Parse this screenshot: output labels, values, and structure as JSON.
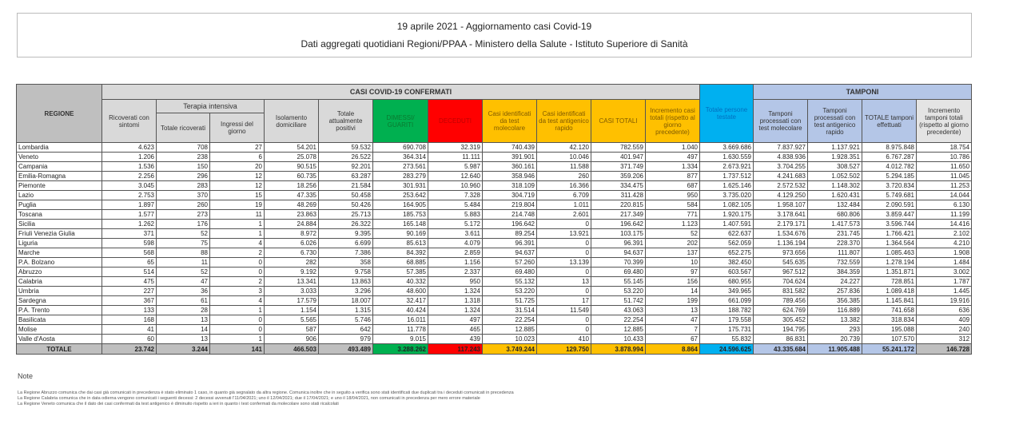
{
  "title": "19 aprile 2021 - Aggiornamento casi Covid-19",
  "subtitle": "Dati aggregati quotidiani Regioni/PPAA - Ministero della Salute - Istituto Superiore di Sanità",
  "headers": {
    "regione": "REGIONE",
    "casi_confermati": "CASI COVID-19 CONFERMATI",
    "tamponi": "TAMPONI",
    "terapia_intensiva": "Terapia intensiva",
    "columns": [
      "Ricoverati con sintomi",
      "Totale ricoverati",
      "Ingressi del giorno",
      "Isolamento domiciliare",
      "Totale attualmente positivi",
      "DIMESSI/ GUARITI",
      "DECEDUTI",
      "Casi identificati da test molecolare",
      "Casi identificati da test antigenico rapido",
      "CASI TOTALI",
      "Incremento casi totali (rispetto al giorno precedente)",
      "Totale persone testate",
      "Tamponi processati con test molecolare",
      "Tamponi processati con test antigenico rapido",
      "TOTALE tamponi effettuati",
      "Incremento tamponi totali (rispetto al giorno precedente)"
    ]
  },
  "colors": {
    "green": "#00b050",
    "red": "#ff0000",
    "orange": "#ffc000",
    "blue": "#00b0f0",
    "light_blue": "#b4c6e7"
  },
  "rows": [
    [
      "Lombardia",
      "4.623",
      "708",
      "27",
      "54.201",
      "59.532",
      "690.708",
      "32.319",
      "740.439",
      "42.120",
      "782.559",
      "1.040",
      "3.669.686",
      "7.837.927",
      "1.137.921",
      "8.975.848",
      "18.754"
    ],
    [
      "Veneto",
      "1.206",
      "238",
      "6",
      "25.078",
      "26.522",
      "364.314",
      "11.111",
      "391.901",
      "10.046",
      "401.947",
      "497",
      "1.630.559",
      "4.838.936",
      "1.928.351",
      "6.767.287",
      "10.786"
    ],
    [
      "Campania",
      "1.536",
      "150",
      "20",
      "90.515",
      "92.201",
      "273.561",
      "5.987",
      "360.161",
      "11.588",
      "371.749",
      "1.334",
      "2.673.921",
      "3.704.255",
      "308.527",
      "4.012.782",
      "11.650"
    ],
    [
      "Emilia-Romagna",
      "2.256",
      "296",
      "12",
      "60.735",
      "63.287",
      "283.279",
      "12.640",
      "358.946",
      "260",
      "359.206",
      "877",
      "1.737.512",
      "4.241.683",
      "1.052.502",
      "5.294.185",
      "11.045"
    ],
    [
      "Piemonte",
      "3.045",
      "283",
      "12",
      "18.256",
      "21.584",
      "301.931",
      "10.960",
      "318.109",
      "16.366",
      "334.475",
      "687",
      "1.625.146",
      "2.572.532",
      "1.148.302",
      "3.720.834",
      "11.253"
    ],
    [
      "Lazio",
      "2.753",
      "370",
      "15",
      "47.335",
      "50.458",
      "253.642",
      "7.328",
      "304.719",
      "6.709",
      "311.428",
      "950",
      "3.735.020",
      "4.129.250",
      "1.620.431",
      "5.749.681",
      "14.044"
    ],
    [
      "Puglia",
      "1.897",
      "260",
      "19",
      "48.269",
      "50.426",
      "164.905",
      "5.484",
      "219.804",
      "1.011",
      "220.815",
      "584",
      "1.082.105",
      "1.958.107",
      "132.484",
      "2.090.591",
      "6.130"
    ],
    [
      "Toscana",
      "1.577",
      "273",
      "11",
      "23.863",
      "25.713",
      "185.753",
      "5.883",
      "214.748",
      "2.601",
      "217.349",
      "771",
      "1.920.175",
      "3.178.641",
      "680.806",
      "3.859.447",
      "11.199"
    ],
    [
      "Sicilia",
      "1.262",
      "176",
      "1",
      "24.884",
      "26.322",
      "165.148",
      "5.172",
      "196.642",
      "0",
      "196.642",
      "1.123",
      "1.407.591",
      "2.179.171",
      "1.417.573",
      "3.596.744",
      "14.416"
    ],
    [
      "Friuli Venezia Giulia",
      "371",
      "52",
      "1",
      "8.972",
      "9.395",
      "90.169",
      "3.611",
      "89.254",
      "13.921",
      "103.175",
      "52",
      "622.637",
      "1.534.676",
      "231.745",
      "1.766.421",
      "2.102"
    ],
    [
      "Liguria",
      "598",
      "75",
      "4",
      "6.026",
      "6.699",
      "85.613",
      "4.079",
      "96.391",
      "0",
      "96.391",
      "202",
      "562.059",
      "1.136.194",
      "228.370",
      "1.364.564",
      "4.210"
    ],
    [
      "Marche",
      "568",
      "88",
      "2",
      "6.730",
      "7.386",
      "84.392",
      "2.859",
      "94.637",
      "0",
      "94.637",
      "137",
      "652.275",
      "973.656",
      "111.807",
      "1.085.463",
      "1.908"
    ],
    [
      "P.A. Bolzano",
      "65",
      "11",
      "0",
      "282",
      "358",
      "68.885",
      "1.156",
      "57.260",
      "13.139",
      "70.399",
      "10",
      "382.450",
      "545.635",
      "732.559",
      "1.278.194",
      "1.484"
    ],
    [
      "Abruzzo",
      "514",
      "52",
      "0",
      "9.192",
      "9.758",
      "57.385",
      "2.337",
      "69.480",
      "0",
      "69.480",
      "97",
      "603.567",
      "967.512",
      "384.359",
      "1.351.871",
      "3.002"
    ],
    [
      "Calabria",
      "475",
      "47",
      "2",
      "13.341",
      "13.863",
      "40.332",
      "950",
      "55.132",
      "13",
      "55.145",
      "156",
      "680.955",
      "704.624",
      "24.227",
      "728.851",
      "1.787"
    ],
    [
      "Umbria",
      "227",
      "36",
      "3",
      "3.033",
      "3.296",
      "48.600",
      "1.324",
      "53.220",
      "0",
      "53.220",
      "14",
      "349.965",
      "831.582",
      "257.836",
      "1.089.418",
      "1.445"
    ],
    [
      "Sardegna",
      "367",
      "61",
      "4",
      "17.579",
      "18.007",
      "32.417",
      "1.318",
      "51.725",
      "17",
      "51.742",
      "199",
      "661.099",
      "789.456",
      "356.385",
      "1.145.841",
      "19.916"
    ],
    [
      "P.A. Trento",
      "133",
      "28",
      "1",
      "1.154",
      "1.315",
      "40.424",
      "1.324",
      "31.514",
      "11.549",
      "43.063",
      "13",
      "188.782",
      "624.769",
      "116.889",
      "741.658",
      "636"
    ],
    [
      "Basilicata",
      "168",
      "13",
      "0",
      "5.565",
      "5.746",
      "16.011",
      "497",
      "22.254",
      "0",
      "22.254",
      "47",
      "179.558",
      "305.452",
      "13.382",
      "318.834",
      "409"
    ],
    [
      "Molise",
      "41",
      "14",
      "0",
      "587",
      "642",
      "11.778",
      "465",
      "12.885",
      "0",
      "12.885",
      "7",
      "175.731",
      "194.795",
      "293",
      "195.088",
      "240"
    ],
    [
      "Valle d'Aosta",
      "60",
      "13",
      "1",
      "906",
      "979",
      "9.015",
      "439",
      "10.023",
      "410",
      "10.433",
      "67",
      "55.832",
      "86.831",
      "20.739",
      "107.570",
      "312"
    ]
  ],
  "totals": [
    "TOTALE",
    "23.742",
    "3.244",
    "141",
    "466.503",
    "493.489",
    "3.288.262",
    "117.243",
    "3.749.244",
    "129.750",
    "3.878.994",
    "8.864",
    "24.596.625",
    "43.335.684",
    "11.905.488",
    "55.241.172",
    "146.728"
  ],
  "notes": {
    "heading": "Note",
    "items": [
      "La Regione Abruzzo comunica che dai casi già comunicati in precedenza è stato eliminato 1 caso, in quanto già segnalato da altra regione. Comunica inoltre che in seguito a verifica sono stati identificati due duplicati tra i deceduti comunicati in precedenza",
      "La Regione Calabria comunica che in data odierna vengono comunicati i seguenti decessi: 2 decessi avvenuti l'11/04/2021; uno il 12/04/2021; due il 17/04/2021; e uno il 18/04/2021, non comunicati in precedenza per mero errore materiale",
      "La Regione Veneto comunica che il dato dei casi confermati da test antigenico è diminuito rispetto a ieri in quanto i test confermati da molecolare sono stati ricalcolati"
    ]
  }
}
